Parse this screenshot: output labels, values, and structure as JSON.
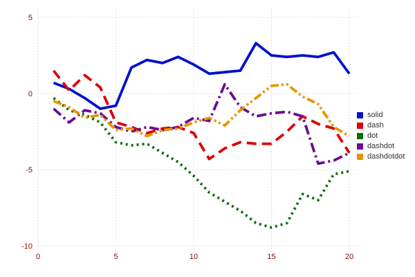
{
  "colors": {
    "background": "#ffffff",
    "grid": "#c9c9c9",
    "tick_label": "#8b0000",
    "legend_text": "#333333"
  },
  "chart_data": {
    "type": "line",
    "title": "",
    "xlabel": "",
    "ylabel": "",
    "xlim": [
      0,
      20.5
    ],
    "ylim": [
      -10.5,
      5.5
    ],
    "xticks": [
      0,
      5,
      10,
      15,
      20
    ],
    "yticks": [
      -10,
      -5,
      0,
      5
    ],
    "grid": true,
    "legend_position": "right",
    "x": [
      1,
      2,
      3,
      4,
      5,
      6,
      7,
      8,
      9,
      10,
      11,
      12,
      13,
      14,
      15,
      16,
      17,
      18,
      19,
      20
    ],
    "series": [
      {
        "name": "solid",
        "color": "#0011cc",
        "dash_style": "solid",
        "values": [
          0.7,
          0.3,
          -0.3,
          -1.0,
          -0.8,
          1.7,
          2.2,
          2.0,
          2.4,
          1.9,
          1.3,
          1.4,
          1.5,
          3.3,
          2.5,
          2.4,
          2.5,
          2.4,
          2.7,
          1.3
        ]
      },
      {
        "name": "dash",
        "color": "#dd0000",
        "dash_style": "dash",
        "values": [
          1.5,
          0.2,
          1.2,
          0.4,
          -1.9,
          -2.2,
          -2.6,
          -2.3,
          -2.2,
          -2.6,
          -4.3,
          -3.6,
          -3.2,
          -3.3,
          -3.3,
          -2.5,
          -1.5,
          -2.0,
          -2.3,
          -3.9
        ]
      },
      {
        "name": "dot",
        "color": "#0b6e0b",
        "dash_style": "dot",
        "values": [
          -0.3,
          -1.1,
          -1.4,
          -1.9,
          -3.2,
          -3.4,
          -3.3,
          -3.9,
          -4.5,
          -5.4,
          -6.5,
          -7.1,
          -7.7,
          -8.5,
          -8.8,
          -8.5,
          -6.6,
          -7.0,
          -5.3,
          -5.1
        ]
      },
      {
        "name": "dashdot",
        "color": "#6a0d91",
        "dash_style": "dashdot",
        "values": [
          -1.0,
          -1.9,
          -1.1,
          -1.3,
          -2.2,
          -2.5,
          -2.2,
          -2.4,
          -2.2,
          -1.6,
          -1.8,
          0.6,
          -0.9,
          -1.5,
          -1.3,
          -1.2,
          -1.5,
          -4.6,
          -4.4,
          -3.9
        ]
      },
      {
        "name": "dashdotdot",
        "color": "#e69500",
        "dash_style": "dashdotdot",
        "values": [
          -0.5,
          -0.9,
          -1.6,
          -1.4,
          -2.4,
          -2.3,
          -2.8,
          -2.4,
          -2.3,
          -1.9,
          -1.6,
          -2.1,
          -1.1,
          -0.3,
          0.5,
          0.6,
          -0.2,
          -0.7,
          -2.2,
          -2.8
        ]
      }
    ]
  }
}
